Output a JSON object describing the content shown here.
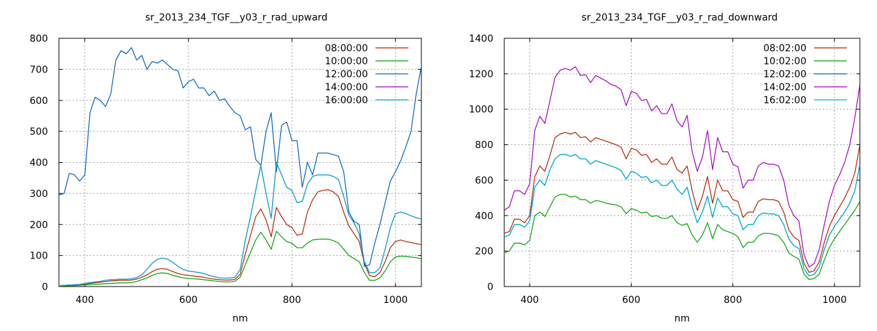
{
  "chart_data": [
    {
      "type": "line",
      "title": "sr_2013_234_TGF__y03_r_rad_upward",
      "xlabel": "nm",
      "ylabel": "",
      "xlim": [
        350,
        1050
      ],
      "ylim": [
        0,
        800
      ],
      "xticks": [
        400,
        600,
        800,
        1000
      ],
      "yticks": [
        0,
        100,
        200,
        300,
        400,
        500,
        600,
        700,
        800
      ],
      "grid": true,
      "legend_position": "top-right",
      "x": [
        350,
        360,
        370,
        380,
        390,
        400,
        410,
        420,
        430,
        440,
        450,
        460,
        470,
        480,
        490,
        500,
        510,
        520,
        530,
        540,
        550,
        560,
        570,
        580,
        590,
        600,
        610,
        620,
        630,
        640,
        650,
        660,
        670,
        680,
        690,
        700,
        710,
        720,
        730,
        740,
        750,
        760,
        770,
        780,
        790,
        800,
        810,
        820,
        830,
        840,
        850,
        860,
        870,
        880,
        890,
        900,
        910,
        920,
        930,
        940,
        950,
        960,
        970,
        980,
        990,
        1000,
        1010,
        1020,
        1030,
        1040,
        1050
      ],
      "series": [
        {
          "name": "08:00:00",
          "color": "#b22000",
          "values": [
            2,
            3,
            4,
            5,
            6,
            8,
            10,
            12,
            14,
            16,
            18,
            19,
            20,
            20,
            21,
            24,
            30,
            38,
            48,
            56,
            58,
            55,
            48,
            42,
            38,
            36,
            34,
            32,
            30,
            26,
            24,
            22,
            21,
            21,
            23,
            40,
            105,
            165,
            225,
            250,
            215,
            160,
            255,
            225,
            200,
            190,
            165,
            170,
            240,
            280,
            305,
            310,
            312,
            305,
            290,
            240,
            195,
            170,
            145,
            75,
            35,
            32,
            45,
            80,
            125,
            145,
            150,
            145,
            142,
            138,
            135
          ]
        },
        {
          "name": "10:00:00",
          "color": "#00a000",
          "values": [
            1,
            2,
            3,
            3,
            4,
            5,
            6,
            7,
            8,
            9,
            10,
            11,
            12,
            12,
            13,
            16,
            22,
            28,
            36,
            42,
            44,
            42,
            36,
            32,
            28,
            26,
            25,
            24,
            22,
            20,
            18,
            16,
            15,
            15,
            17,
            30,
            70,
            110,
            150,
            175,
            150,
            120,
            178,
            160,
            145,
            140,
            125,
            125,
            140,
            150,
            152,
            153,
            153,
            148,
            140,
            120,
            100,
            90,
            80,
            45,
            20,
            20,
            28,
            50,
            80,
            95,
            98,
            97,
            95,
            93,
            90
          ]
        },
        {
          "name": "12:00:00",
          "color": "#0060c0",
          "values": [
            295,
            300,
            365,
            360,
            340,
            360,
            560,
            610,
            600,
            580,
            620,
            730,
            760,
            750,
            770,
            730,
            745,
            700,
            725,
            720,
            730,
            715,
            700,
            695,
            640,
            660,
            668,
            640,
            640,
            615,
            630,
            600,
            605,
            580,
            560,
            550,
            505,
            515,
            410,
            390,
            500,
            560,
            370,
            520,
            530,
            470,
            470,
            320,
            400,
            360,
            430,
            430,
            430,
            425,
            420,
            370,
            240,
            210,
            200,
            65,
            70,
            140,
            200,
            270,
            340,
            370,
            405,
            450,
            500,
            620,
            710
          ]
        },
        {
          "name": "14:00:00",
          "color": "#a000c0",
          "values": [
            3,
            4,
            5,
            6,
            7,
            10,
            13,
            15,
            17,
            20,
            22,
            23,
            24,
            24,
            25,
            29,
            38,
            55,
            75,
            88,
            92,
            88,
            78,
            65,
            55,
            50,
            48,
            45,
            42,
            36,
            32,
            28,
            27,
            27,
            30,
            55,
            150,
            225,
            310,
            390,
            300,
            220,
            400,
            360,
            320,
            310,
            270,
            275,
            330,
            355,
            360,
            360,
            360,
            355,
            345,
            290,
            230,
            205,
            170,
            80,
            45,
            45,
            60,
            120,
            190,
            235,
            240,
            235,
            228,
            222,
            218
          ]
        },
        {
          "name": "16:00:00",
          "color": "#00b0d0",
          "values": [
            3,
            4,
            5,
            6,
            7,
            10,
            13,
            15,
            17,
            20,
            22,
            23,
            24,
            24,
            25,
            29,
            38,
            55,
            75,
            88,
            92,
            88,
            78,
            65,
            55,
            50,
            48,
            45,
            42,
            36,
            32,
            28,
            27,
            27,
            30,
            55,
            150,
            225,
            310,
            390,
            300,
            220,
            400,
            360,
            320,
            310,
            270,
            275,
            330,
            355,
            360,
            360,
            360,
            355,
            345,
            290,
            230,
            205,
            170,
            80,
            45,
            45,
            60,
            120,
            190,
            235,
            240,
            235,
            228,
            222,
            218
          ]
        }
      ]
    },
    {
      "type": "line",
      "title": "sr_2013_234_TGF__y03_r_rad_downward",
      "xlabel": "nm",
      "ylabel": "",
      "xlim": [
        350,
        1050
      ],
      "ylim": [
        0,
        1400
      ],
      "xticks": [
        400,
        600,
        800,
        1000
      ],
      "yticks": [
        0,
        200,
        400,
        600,
        800,
        1000,
        1200,
        1400
      ],
      "grid": true,
      "legend_position": "top-right",
      "x": [
        350,
        360,
        370,
        380,
        390,
        400,
        410,
        420,
        430,
        440,
        450,
        460,
        470,
        480,
        490,
        500,
        510,
        520,
        530,
        540,
        550,
        560,
        570,
        580,
        590,
        600,
        610,
        620,
        630,
        640,
        650,
        660,
        670,
        680,
        690,
        700,
        710,
        720,
        730,
        740,
        750,
        760,
        770,
        780,
        790,
        800,
        810,
        820,
        830,
        840,
        850,
        860,
        870,
        880,
        890,
        900,
        910,
        920,
        930,
        940,
        950,
        960,
        970,
        980,
        990,
        1000,
        1010,
        1020,
        1030,
        1040,
        1050
      ],
      "series": [
        {
          "name": "08:02:00",
          "color": "#b22000",
          "values": [
            300,
            310,
            380,
            380,
            360,
            400,
            620,
            680,
            650,
            740,
            840,
            860,
            870,
            860,
            870,
            840,
            845,
            815,
            840,
            830,
            820,
            810,
            800,
            785,
            720,
            780,
            770,
            740,
            745,
            700,
            720,
            690,
            690,
            730,
            660,
            640,
            680,
            540,
            430,
            510,
            620,
            470,
            600,
            540,
            540,
            490,
            480,
            390,
            420,
            420,
            480,
            495,
            490,
            490,
            480,
            420,
            320,
            280,
            260,
            130,
            80,
            90,
            140,
            250,
            340,
            400,
            450,
            500,
            560,
            640,
            800
          ]
        },
        {
          "name": "10:02:00",
          "color": "#00a000",
          "values": [
            190,
            200,
            245,
            245,
            235,
            260,
            400,
            420,
            395,
            450,
            505,
            520,
            520,
            505,
            510,
            490,
            490,
            470,
            485,
            480,
            470,
            465,
            460,
            450,
            410,
            440,
            430,
            415,
            420,
            395,
            400,
            385,
            385,
            400,
            360,
            345,
            355,
            290,
            250,
            290,
            360,
            270,
            350,
            320,
            310,
            300,
            280,
            220,
            250,
            250,
            285,
            300,
            300,
            295,
            285,
            250,
            190,
            170,
            155,
            70,
            40,
            45,
            70,
            150,
            220,
            270,
            310,
            350,
            390,
            430,
            480
          ]
        },
        {
          "name": "12:02:00",
          "color": "#0060c0",
          "values": [
            280,
            290,
            350,
            350,
            335,
            370,
            560,
            600,
            570,
            660,
            720,
            745,
            745,
            735,
            745,
            720,
            720,
            690,
            710,
            700,
            690,
            680,
            670,
            655,
            605,
            650,
            640,
            615,
            620,
            585,
            600,
            570,
            570,
            600,
            550,
            520,
            560,
            450,
            360,
            420,
            510,
            390,
            500,
            450,
            450,
            410,
            400,
            320,
            350,
            350,
            400,
            415,
            410,
            410,
            400,
            350,
            270,
            230,
            215,
            100,
            60,
            70,
            110,
            210,
            290,
            340,
            380,
            420,
            470,
            540,
            690
          ]
        },
        {
          "name": "14:02:00",
          "color": "#a000c0",
          "values": [
            430,
            450,
            540,
            540,
            520,
            580,
            880,
            960,
            920,
            1050,
            1180,
            1220,
            1230,
            1220,
            1240,
            1190,
            1195,
            1150,
            1190,
            1175,
            1160,
            1140,
            1130,
            1110,
            1020,
            1100,
            1090,
            1050,
            1055,
            990,
            1020,
            975,
            975,
            1030,
            935,
            900,
            965,
            760,
            650,
            730,
            880,
            660,
            840,
            760,
            760,
            690,
            675,
            555,
            600,
            600,
            680,
            700,
            690,
            690,
            680,
            600,
            460,
            400,
            370,
            180,
            110,
            130,
            210,
            350,
            480,
            570,
            630,
            700,
            800,
            950,
            1140
          ]
        },
        {
          "name": "16:02:00",
          "color": "#00b0d0",
          "values": [
            280,
            290,
            350,
            350,
            335,
            370,
            560,
            600,
            570,
            660,
            720,
            745,
            745,
            735,
            745,
            720,
            720,
            690,
            710,
            700,
            690,
            680,
            670,
            655,
            605,
            650,
            640,
            615,
            620,
            585,
            600,
            570,
            570,
            600,
            550,
            520,
            560,
            450,
            360,
            420,
            510,
            390,
            500,
            450,
            450,
            410,
            400,
            320,
            350,
            350,
            400,
            415,
            410,
            410,
            400,
            350,
            270,
            230,
            215,
            100,
            60,
            70,
            110,
            210,
            290,
            340,
            380,
            420,
            470,
            540,
            690
          ]
        }
      ]
    }
  ]
}
